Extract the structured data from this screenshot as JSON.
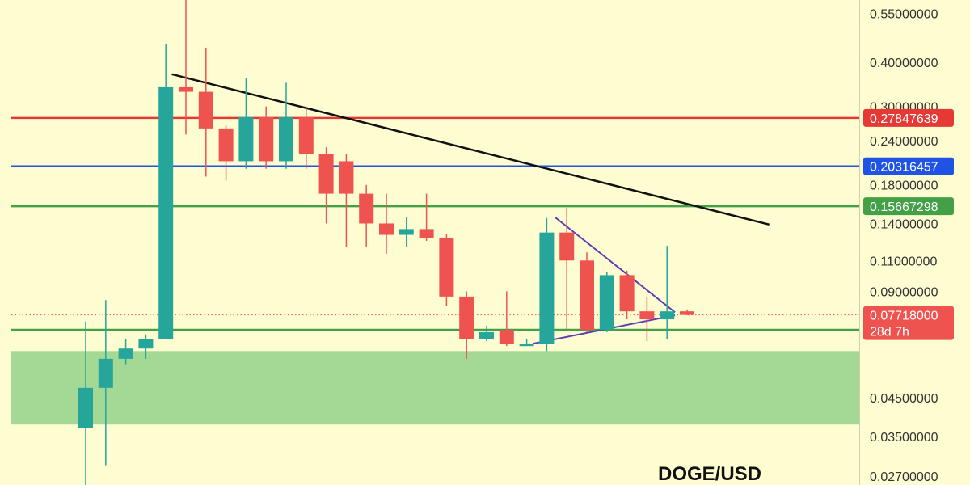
{
  "chart_data": {
    "type": "candlestick",
    "title": "DOGE/USD",
    "y_scale": "log",
    "ylim": [
      0.0255,
      0.6
    ],
    "grid": false,
    "y_ticks": [
      "0.55000000",
      "0.40000000",
      "0.30000000",
      "0.24000000",
      "0.18000000",
      "0.14000000",
      "0.11000000",
      "0.09000000",
      "0.04500000",
      "0.03500000",
      "0.02700000"
    ],
    "candles": [
      {
        "o": 0.037,
        "h": 0.074,
        "l": 0.025,
        "c": 0.048
      },
      {
        "o": 0.048,
        "h": 0.085,
        "l": 0.029,
        "c": 0.058
      },
      {
        "o": 0.058,
        "h": 0.066,
        "l": 0.056,
        "c": 0.062
      },
      {
        "o": 0.062,
        "h": 0.068,
        "l": 0.058,
        "c": 0.066
      },
      {
        "o": 0.066,
        "h": 0.45,
        "l": 0.066,
        "c": 0.34
      },
      {
        "o": 0.34,
        "h": 0.6,
        "l": 0.25,
        "c": 0.33
      },
      {
        "o": 0.33,
        "h": 0.44,
        "l": 0.19,
        "c": 0.26
      },
      {
        "o": 0.26,
        "h": 0.265,
        "l": 0.185,
        "c": 0.21
      },
      {
        "o": 0.21,
        "h": 0.36,
        "l": 0.2,
        "c": 0.28
      },
      {
        "o": 0.28,
        "h": 0.3,
        "l": 0.2,
        "c": 0.21
      },
      {
        "o": 0.21,
        "h": 0.35,
        "l": 0.2,
        "c": 0.28
      },
      {
        "o": 0.28,
        "h": 0.3,
        "l": 0.2,
        "c": 0.22
      },
      {
        "o": 0.22,
        "h": 0.23,
        "l": 0.14,
        "c": 0.17
      },
      {
        "o": 0.21,
        "h": 0.22,
        "l": 0.12,
        "c": 0.17
      },
      {
        "o": 0.17,
        "h": 0.18,
        "l": 0.12,
        "c": 0.14
      },
      {
        "o": 0.14,
        "h": 0.17,
        "l": 0.115,
        "c": 0.13
      },
      {
        "o": 0.13,
        "h": 0.146,
        "l": 0.12,
        "c": 0.135
      },
      {
        "o": 0.135,
        "h": 0.17,
        "l": 0.125,
        "c": 0.127
      },
      {
        "o": 0.127,
        "h": 0.131,
        "l": 0.082,
        "c": 0.087
      },
      {
        "o": 0.087,
        "h": 0.09,
        "l": 0.058,
        "c": 0.066
      },
      {
        "o": 0.066,
        "h": 0.072,
        "l": 0.065,
        "c": 0.069
      },
      {
        "o": 0.07,
        "h": 0.09,
        "l": 0.063,
        "c": 0.064
      },
      {
        "o": 0.064,
        "h": 0.066,
        "l": 0.063,
        "c": 0.064
      },
      {
        "o": 0.064,
        "h": 0.145,
        "l": 0.061,
        "c": 0.132
      },
      {
        "o": 0.132,
        "h": 0.155,
        "l": 0.07,
        "c": 0.11
      },
      {
        "o": 0.11,
        "h": 0.116,
        "l": 0.069,
        "c": 0.07
      },
      {
        "o": 0.07,
        "h": 0.102,
        "l": 0.069,
        "c": 0.1
      },
      {
        "o": 0.1,
        "h": 0.103,
        "l": 0.075,
        "c": 0.079
      },
      {
        "o": 0.079,
        "h": 0.087,
        "l": 0.065,
        "c": 0.075
      },
      {
        "o": 0.075,
        "h": 0.121,
        "l": 0.066,
        "c": 0.079
      },
      {
        "o": 0.079,
        "h": 0.08,
        "l": 0.077,
        "c": 0.0772
      }
    ],
    "colors": {
      "up": "#26a69a",
      "down": "#ef5350",
      "background": "#fefdd2"
    },
    "price_levels": [
      {
        "value": 0.27847639,
        "label": "0.27847639",
        "color": "#e53935"
      },
      {
        "value": 0.20316457,
        "label": "0.20316457",
        "color": "#1e53e5"
      },
      {
        "value": 0.15667298,
        "label": "0.15667298",
        "color": "#43a047"
      },
      {
        "value": 0.07005227,
        "label": "0.07005227",
        "color": "#43a047"
      }
    ],
    "current_price": {
      "value": 0.07718,
      "label": "0.07718000",
      "countdown": "28d 7h",
      "color": "#ef5350"
    },
    "support_zone": {
      "low": 0.0378,
      "high": 0.061,
      "color": "#a3d995"
    },
    "trendlines": [
      {
        "from": {
          "i": 4.3,
          "price": 0.37
        },
        "to": {
          "i": 34.1,
          "price": 0.139
        },
        "color": "#111111"
      },
      {
        "from": {
          "i": 23.4,
          "price": 0.146
        },
        "to": {
          "i": 29.4,
          "price": 0.0785
        },
        "color": "#5b3fb5"
      },
      {
        "from": {
          "i": 22.3,
          "price": 0.064
        },
        "to": {
          "i": 29.4,
          "price": 0.077
        },
        "color": "#5b3fb5"
      }
    ]
  }
}
